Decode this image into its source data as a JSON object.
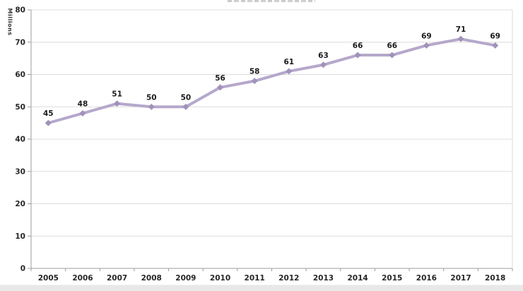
{
  "chart_data": {
    "type": "line",
    "title": "",
    "ylabel": "Millions",
    "xlabel": "",
    "categories": [
      "2005",
      "2006",
      "2007",
      "2008",
      "2009",
      "2010",
      "2011",
      "2012",
      "2013",
      "2014",
      "2015",
      "2016",
      "2017",
      "2018"
    ],
    "values": [
      45,
      48,
      51,
      50,
      50,
      56,
      58,
      61,
      63,
      66,
      66,
      69,
      71,
      69
    ],
    "ylim": [
      0,
      80
    ],
    "ytick_interval": 10,
    "yticks": [
      0,
      10,
      20,
      30,
      40,
      50,
      60,
      70,
      80
    ],
    "grid": true,
    "legend_position": "none",
    "marker": "diamond",
    "data_labels_shown": true,
    "colors": {
      "line": "#b5a8cb",
      "marker": "#a092b9",
      "data_label": "#1a1a1a",
      "tick_label": "#262626",
      "axis": "#9d9d9d",
      "gridline": "#dcdcdc",
      "plot_border": "#dcdcdc",
      "bottom_strip": "#e8e8e8"
    }
  }
}
